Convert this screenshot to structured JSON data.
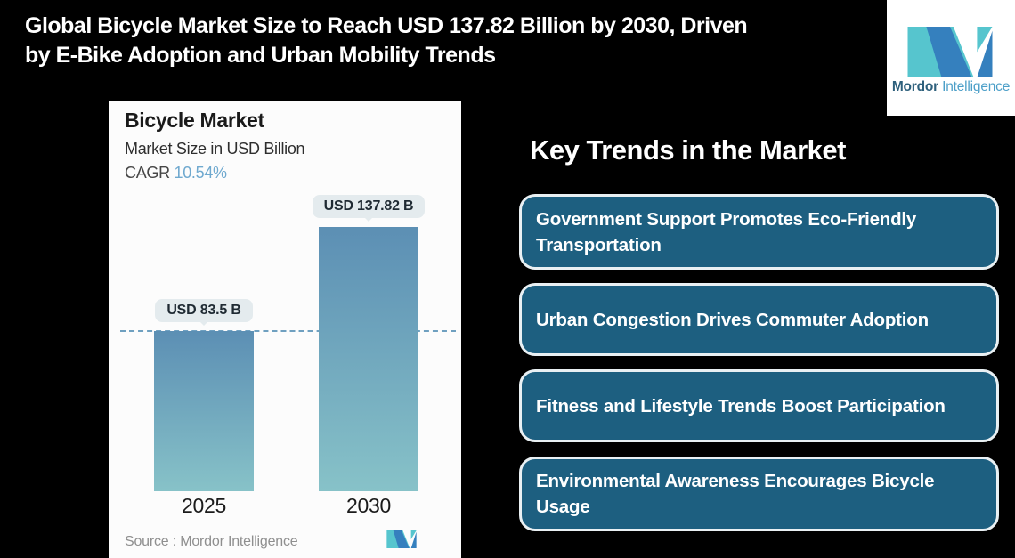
{
  "header": {
    "title_line1": "Global Bicycle Market Size to Reach USD 137.82 Billion by 2030, Driven",
    "title_line2": "by E-Bike Adoption and Urban Mobility Trends"
  },
  "brand": {
    "name_bold": "Mordor",
    "name_light": "Intelligence",
    "teal": "#56C5CE",
    "blue": "#3580BE",
    "name_bold_color": "#2E607C",
    "name_light_color": "#4C9FC8"
  },
  "chart_card": {
    "title": "Bicycle Market",
    "subtitle": "Market Size in USD Billion",
    "cagr_label": "CAGR",
    "cagr_value": "10.54%",
    "source": "Source :  Mordor Intelligence"
  },
  "chart_data": {
    "type": "bar",
    "title": "Bicycle Market",
    "subtitle": "Market Size in USD Billion",
    "unit": "USD Billion",
    "cagr_percent": 10.54,
    "categories": [
      "2025",
      "2030"
    ],
    "values": [
      83.5,
      137.82
    ],
    "value_labels": [
      "USD 83.5 B",
      "USD 137.82 B"
    ],
    "bar_gradient_top": "#5C8FB4",
    "bar_gradient_bottom": "#87C2C8",
    "reference_line": {
      "at_value": 83.5,
      "style": "dashed",
      "color": "#6FA0C0"
    },
    "grid": "off",
    "legend": "none",
    "tooltip_bg": "#E4EBEE",
    "card_bg": "#FCFCFC",
    "page_bg": "#000000"
  },
  "trends": {
    "heading": "Key Trends in the Market",
    "box_color": "#1D5F80",
    "box_border_color": "#E9F0F3",
    "items": [
      {
        "text": "Government Support Promotes Eco-Friendly Transportation"
      },
      {
        "text": "Urban Congestion Drives Commuter Adoption"
      },
      {
        "text": "Fitness and Lifestyle Trends Boost Participation"
      },
      {
        "text": "Environmental Awareness Encourages Bicycle Usage"
      }
    ]
  }
}
